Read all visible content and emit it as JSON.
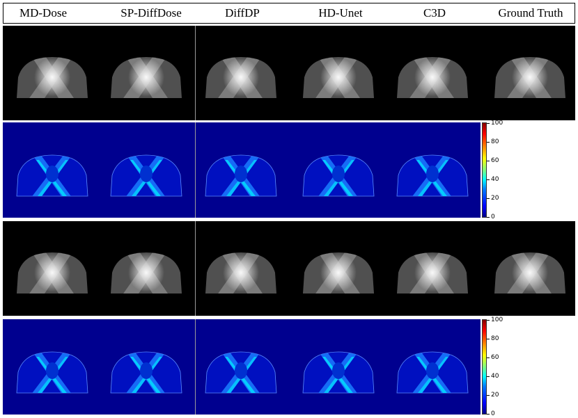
{
  "columns": [
    "MD-Dose",
    "SP-DiffDose",
    "DiffDP",
    "HD-Unet",
    "C3D",
    "Ground Truth"
  ],
  "colorbar": {
    "ticks": [
      "100",
      "80",
      "60",
      "40",
      "20",
      "0"
    ],
    "range": [
      0,
      100
    ],
    "colormap": "jet"
  },
  "colors": {
    "dose_background": "#000000",
    "error_background": "#00008f",
    "separator": "#9a9a9a"
  }
}
